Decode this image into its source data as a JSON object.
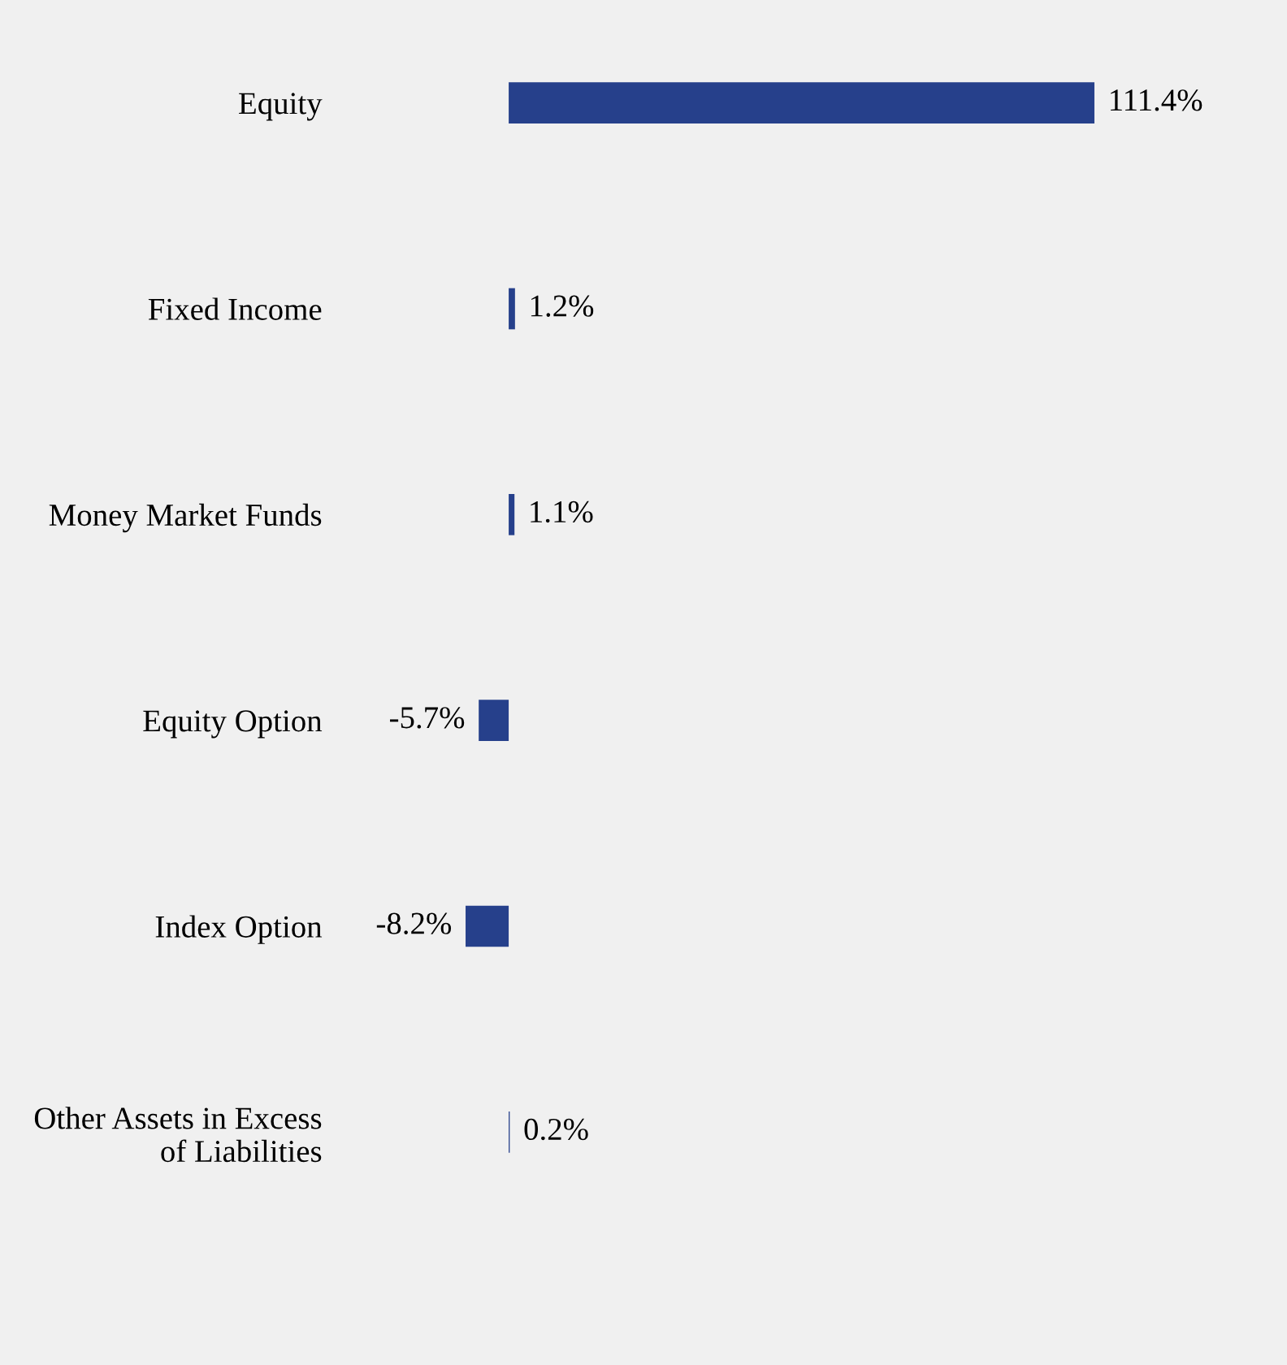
{
  "chart_data": {
    "type": "bar",
    "orientation": "horizontal",
    "categories": [
      "Equity",
      "Fixed Income",
      "Money Market Funds",
      "Equity Option",
      "Index Option",
      "Other Assets in Excess of Liabilities"
    ],
    "values": [
      111.4,
      1.2,
      1.1,
      -5.7,
      -8.2,
      0.2
    ],
    "value_labels": [
      "111.4%",
      "1.2%",
      "1.1%",
      "-5.7%",
      "-8.2%",
      "0.2%"
    ],
    "color": "#26408b",
    "grid": false,
    "legend": false
  }
}
